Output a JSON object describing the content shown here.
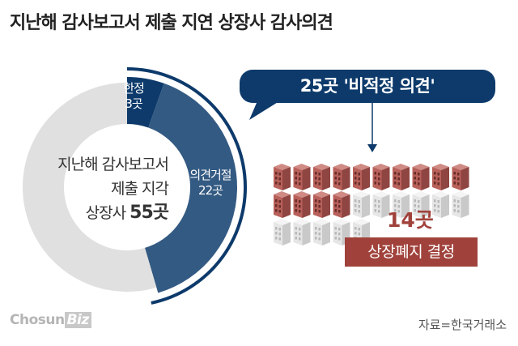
{
  "title": "지난해 감사보고서 제출 지연 상장사 감사의견",
  "chart_data": {
    "type": "pie",
    "title": "지난해 감사보고서 제출 지연 상장사 감사의견",
    "center_label": {
      "line1": "지난해 감사보고서",
      "line2": "제출 지각",
      "line3_prefix": "상장사 ",
      "line3_value": "55곳"
    },
    "total": 55,
    "slices": [
      {
        "name": "한정",
        "value": 3,
        "label": "3곳",
        "color": "#0d3a6b"
      },
      {
        "name": "의견거절",
        "value": 22,
        "label": "22곳",
        "color": "#335a82"
      },
      {
        "name": "",
        "value": 30,
        "label": "",
        "color": "#e0e0e0"
      }
    ],
    "callout": {
      "text": "25곳 '비적정 의견'",
      "value": 25,
      "color": "#0d3a6b"
    },
    "pictogram": {
      "total": 25,
      "highlighted": 14,
      "highlight_color": "#b8605a",
      "other_color": "#e6e6e6",
      "count_label": "14곳",
      "decision_label": "상장폐지 결정"
    }
  },
  "footer": {
    "logo_main": "Chosun",
    "logo_biz": "Biz",
    "source": "자료=한국거래소"
  }
}
